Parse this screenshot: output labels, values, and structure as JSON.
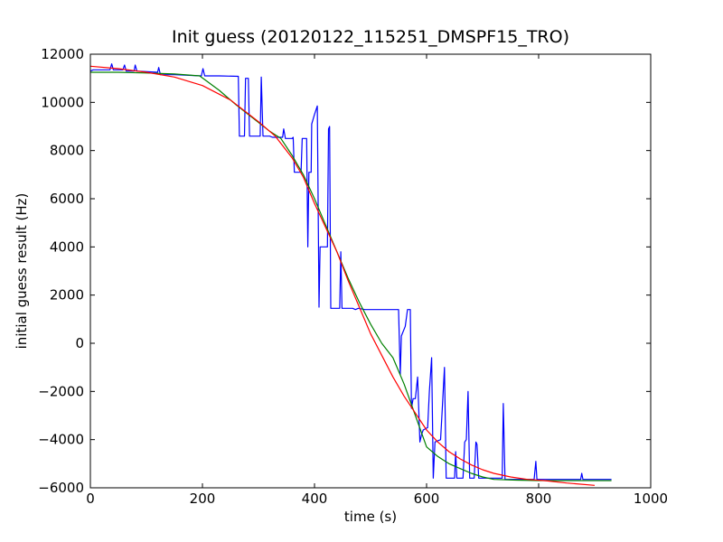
{
  "chart_data": {
    "type": "line",
    "title": "Init guess (20120122_115251_DMSPF15_TRO)",
    "xlabel": "time (s)",
    "ylabel": "initial guess result (Hz)",
    "xlim": [
      0,
      1000
    ],
    "ylim": [
      -6000,
      12000
    ],
    "xticks": [
      0,
      200,
      400,
      600,
      800,
      1000
    ],
    "yticks": [
      -6000,
      -4000,
      -2000,
      0,
      2000,
      4000,
      6000,
      8000,
      10000,
      12000
    ],
    "grid": false,
    "legend": "none",
    "series": [
      {
        "color": "#0000ff",
        "points": [
          [
            0,
            11300
          ],
          [
            5,
            11350
          ],
          [
            35,
            11350
          ],
          [
            38,
            11600
          ],
          [
            41,
            11350
          ],
          [
            58,
            11350
          ],
          [
            61,
            11550
          ],
          [
            64,
            11300
          ],
          [
            78,
            11300
          ],
          [
            80,
            11550
          ],
          [
            83,
            11300
          ],
          [
            120,
            11250
          ],
          [
            122,
            11450
          ],
          [
            125,
            11150
          ],
          [
            150,
            11150
          ],
          [
            198,
            11100
          ],
          [
            201,
            11400
          ],
          [
            204,
            11100
          ],
          [
            230,
            11100
          ],
          [
            264,
            11080
          ],
          [
            266,
            8600
          ],
          [
            275,
            8600
          ],
          [
            277,
            11000
          ],
          [
            282,
            11000
          ],
          [
            284,
            8600
          ],
          [
            303,
            8600
          ],
          [
            305,
            11050
          ],
          [
            308,
            8600
          ],
          [
            320,
            8600
          ],
          [
            325,
            8550
          ],
          [
            343,
            8550
          ],
          [
            345,
            8900
          ],
          [
            348,
            8500
          ],
          [
            360,
            8500
          ],
          [
            362,
            8550
          ],
          [
            364,
            7100
          ],
          [
            376,
            7100
          ],
          [
            378,
            8500
          ],
          [
            386,
            8500
          ],
          [
            388,
            4000
          ],
          [
            390,
            7100
          ],
          [
            394,
            7100
          ],
          [
            395,
            9100
          ],
          [
            400,
            9500
          ],
          [
            405,
            9850
          ],
          [
            408,
            1500
          ],
          [
            410,
            4000
          ],
          [
            423,
            4000
          ],
          [
            425,
            8900
          ],
          [
            427,
            9000
          ],
          [
            429,
            1450
          ],
          [
            445,
            1450
          ],
          [
            447,
            3800
          ],
          [
            449,
            1450
          ],
          [
            468,
            1450
          ],
          [
            473,
            1400
          ],
          [
            478,
            1450
          ],
          [
            490,
            1400
          ],
          [
            550,
            1400
          ],
          [
            553,
            -1300
          ],
          [
            555,
            300
          ],
          [
            562,
            700
          ],
          [
            566,
            1400
          ],
          [
            571,
            1400
          ],
          [
            573,
            -2700
          ],
          [
            576,
            -2300
          ],
          [
            580,
            -2300
          ],
          [
            584,
            -1400
          ],
          [
            588,
            -4100
          ],
          [
            591,
            -3800
          ],
          [
            594,
            -3600
          ],
          [
            602,
            -3500
          ],
          [
            605,
            -2000
          ],
          [
            609,
            -600
          ],
          [
            612,
            -5600
          ],
          [
            615,
            -4100
          ],
          [
            625,
            -4000
          ],
          [
            628,
            -2700
          ],
          [
            632,
            -1000
          ],
          [
            635,
            -5600
          ],
          [
            650,
            -5600
          ],
          [
            652,
            -4500
          ],
          [
            654,
            -5600
          ],
          [
            665,
            -5600
          ],
          [
            668,
            -4100
          ],
          [
            671,
            -4000
          ],
          [
            674,
            -2000
          ],
          [
            677,
            -5600
          ],
          [
            685,
            -5600
          ],
          [
            688,
            -4100
          ],
          [
            690,
            -4200
          ],
          [
            693,
            -5600
          ],
          [
            735,
            -5600
          ],
          [
            737,
            -2500
          ],
          [
            740,
            -5650
          ],
          [
            792,
            -5650
          ],
          [
            795,
            -4900
          ],
          [
            797,
            -5650
          ],
          [
            875,
            -5650
          ],
          [
            877,
            -5400
          ],
          [
            879,
            -5650
          ],
          [
            930,
            -5650
          ]
        ]
      },
      {
        "color": "#008000",
        "points": [
          [
            0,
            11250
          ],
          [
            50,
            11250
          ],
          [
            100,
            11220
          ],
          [
            150,
            11180
          ],
          [
            195,
            11100
          ],
          [
            230,
            10500
          ],
          [
            260,
            9900
          ],
          [
            290,
            9350
          ],
          [
            320,
            8800
          ],
          [
            340,
            8500
          ],
          [
            360,
            7800
          ],
          [
            380,
            7000
          ],
          [
            400,
            6000
          ],
          [
            420,
            4900
          ],
          [
            440,
            3800
          ],
          [
            460,
            2700
          ],
          [
            480,
            1700
          ],
          [
            500,
            800
          ],
          [
            520,
            0
          ],
          [
            540,
            -600
          ],
          [
            560,
            -1700
          ],
          [
            580,
            -3000
          ],
          [
            600,
            -4300
          ],
          [
            620,
            -4700
          ],
          [
            640,
            -5000
          ],
          [
            660,
            -5200
          ],
          [
            680,
            -5400
          ],
          [
            700,
            -5550
          ],
          [
            720,
            -5650
          ],
          [
            760,
            -5680
          ],
          [
            800,
            -5700
          ],
          [
            850,
            -5700
          ],
          [
            900,
            -5700
          ],
          [
            930,
            -5700
          ]
        ]
      },
      {
        "color": "#ff0000",
        "points": [
          [
            0,
            11500
          ],
          [
            50,
            11400
          ],
          [
            100,
            11250
          ],
          [
            150,
            11050
          ],
          [
            200,
            10700
          ],
          [
            250,
            10100
          ],
          [
            300,
            9200
          ],
          [
            330,
            8600
          ],
          [
            360,
            7700
          ],
          [
            380,
            6900
          ],
          [
            400,
            5800
          ],
          [
            420,
            4800
          ],
          [
            440,
            3800
          ],
          [
            460,
            2600
          ],
          [
            480,
            1500
          ],
          [
            500,
            400
          ],
          [
            520,
            -500
          ],
          [
            540,
            -1400
          ],
          [
            560,
            -2200
          ],
          [
            580,
            -2900
          ],
          [
            600,
            -3600
          ],
          [
            620,
            -4100
          ],
          [
            640,
            -4500
          ],
          [
            660,
            -4800
          ],
          [
            680,
            -5050
          ],
          [
            700,
            -5250
          ],
          [
            720,
            -5400
          ],
          [
            750,
            -5550
          ],
          [
            780,
            -5650
          ],
          [
            810,
            -5700
          ],
          [
            850,
            -5800
          ],
          [
            900,
            -5900
          ]
        ]
      }
    ]
  }
}
